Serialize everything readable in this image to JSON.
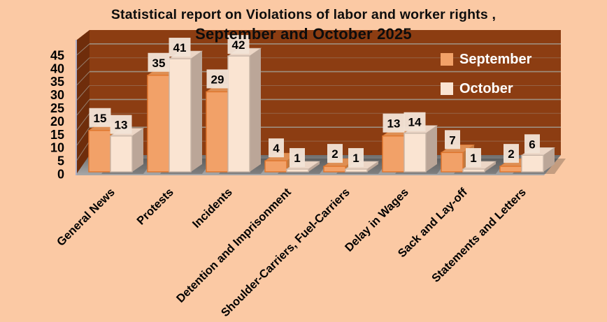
{
  "page": {
    "background": "#FBC9A4"
  },
  "chart_data": {
    "type": "bar",
    "projection": "3d-clustered-column",
    "title_line1": "Statistical report on Violations of labor and worker rights ,",
    "title_line2": "September and October 2025",
    "categories": [
      "General News",
      "Protests",
      "Incidents",
      "Detention and Imprisonment",
      "Shoulder-Carriers, Fuel-Carriers",
      "Delay in Wages",
      "Sack and Lay-off",
      "Statements and Letters"
    ],
    "series": [
      {
        "name": "September",
        "values": [
          15,
          35,
          29,
          4,
          2,
          13,
          7,
          2
        ],
        "color": "#F2A168",
        "top_color": "#DE8E53",
        "side_color": "#C07A42",
        "edge_color": "#E0752C"
      },
      {
        "name": "October",
        "values": [
          13,
          41,
          42,
          1,
          1,
          14,
          1,
          6
        ],
        "color": "#FAE4D2",
        "top_color": "#ECD6C6",
        "side_color": "#BBA698",
        "edge_color": "#C9B6A8"
      }
    ],
    "y_axis": {
      "min": 0,
      "max": 45,
      "ticks": [
        0,
        5,
        10,
        15,
        20,
        25,
        30,
        35,
        40,
        45
      ]
    },
    "legend": {
      "position": "top-right"
    },
    "grid": true,
    "data_labels": true,
    "colors": {
      "background": "#FBC9A4",
      "back_wall": "#8C3D12",
      "side_wall": "#6F2D0B",
      "floor_back": "#6F6F6F",
      "floor_front": "#A8A8A8",
      "gridline": "#A09385",
      "axis_edge": "#A9AECB",
      "label_box": "#F1E3D6",
      "label_text": "#000000",
      "axis_text": "#000000",
      "title_text": "#0d0d0d",
      "legend_text": "#FFFFFF",
      "shadow": "#000000"
    }
  }
}
